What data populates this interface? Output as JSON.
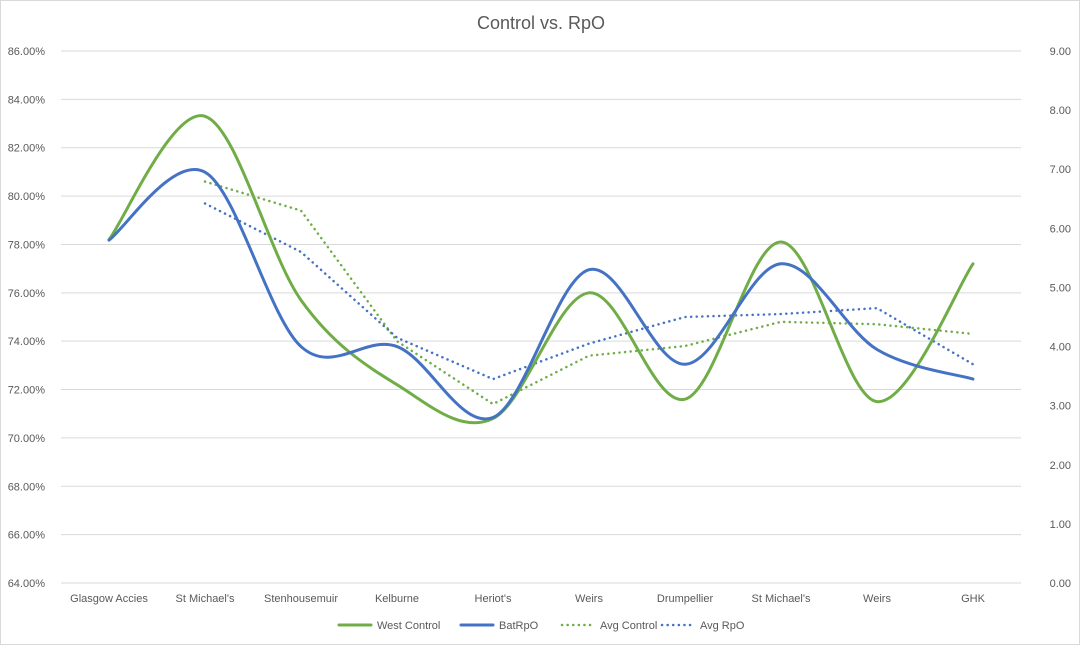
{
  "chart_data": {
    "type": "line",
    "title": "Control vs. RpO",
    "categories": [
      "Glasgow Accies",
      "St Michael's",
      "Stenhousemuir",
      "Kelburne",
      "Heriot's",
      "Weirs",
      "Drumpellier",
      "St Michael's",
      "Weirs",
      "GHK"
    ],
    "y_left": {
      "min": 64,
      "max": 86,
      "step": 2,
      "tick_labels": [
        "64.00%",
        "66.00%",
        "68.00%",
        "70.00%",
        "72.00%",
        "74.00%",
        "76.00%",
        "78.00%",
        "80.00%",
        "82.00%",
        "84.00%",
        "86.00%"
      ]
    },
    "y_right": {
      "min": 0,
      "max": 9,
      "step": 1,
      "tick_labels": [
        "0.00",
        "1.00",
        "2.00",
        "3.00",
        "4.00",
        "5.00",
        "6.00",
        "7.00",
        "8.00",
        "9.00"
      ]
    },
    "grid": true,
    "legend_position": "bottom",
    "series": [
      {
        "name": "West Control",
        "axis": "left",
        "style": "solid",
        "smooth": true,
        "color": "#70ad47",
        "values": [
          78.2,
          83.3,
          75.7,
          72.2,
          70.8,
          76.0,
          71.6,
          78.1,
          71.5,
          77.2
        ]
      },
      {
        "name": "BatRpO",
        "axis": "right",
        "style": "solid",
        "smooth": true,
        "color": "#4472c4",
        "values": [
          5.8,
          6.95,
          4.0,
          4.0,
          2.8,
          5.3,
          3.7,
          5.4,
          3.95,
          3.45
        ]
      },
      {
        "name": "Avg Control",
        "axis": "left",
        "style": "dotted",
        "smooth": false,
        "color": "#70ad47",
        "values": [
          null,
          80.6,
          79.4,
          74.0,
          71.4,
          73.4,
          73.8,
          74.8,
          74.7,
          74.3
        ]
      },
      {
        "name": "Avg RpO",
        "axis": "right",
        "style": "dotted",
        "smooth": false,
        "color": "#4472c4",
        "values": [
          null,
          6.42,
          5.6,
          4.15,
          3.45,
          4.05,
          4.5,
          4.55,
          4.65,
          3.7
        ]
      }
    ]
  }
}
